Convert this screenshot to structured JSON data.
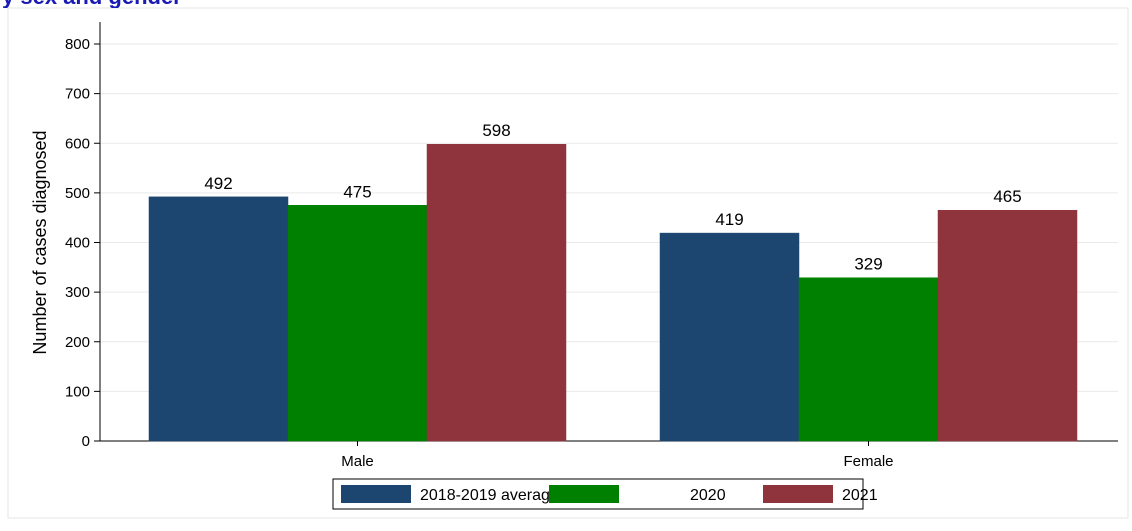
{
  "header": {
    "clipped_title": "y sex and gender"
  },
  "chart_data": {
    "type": "bar",
    "categories": [
      "Male",
      "Female"
    ],
    "series": [
      {
        "name": "2018-2019 average",
        "values": [
          492,
          419
        ],
        "color": "#1c4670"
      },
      {
        "name": "2020",
        "values": [
          475,
          329
        ],
        "color": "#008000"
      },
      {
        "name": "2021",
        "values": [
          598,
          465
        ],
        "color": "#8f343d"
      }
    ],
    "title": "",
    "xlabel": "",
    "ylabel": "Number of cases diagnosed",
    "ylim": [
      0,
      800
    ],
    "yticks": [
      0,
      100,
      200,
      300,
      400,
      500,
      600,
      700,
      800
    ],
    "grid": true,
    "legend_position": "bottom-center",
    "data_labels": true
  }
}
